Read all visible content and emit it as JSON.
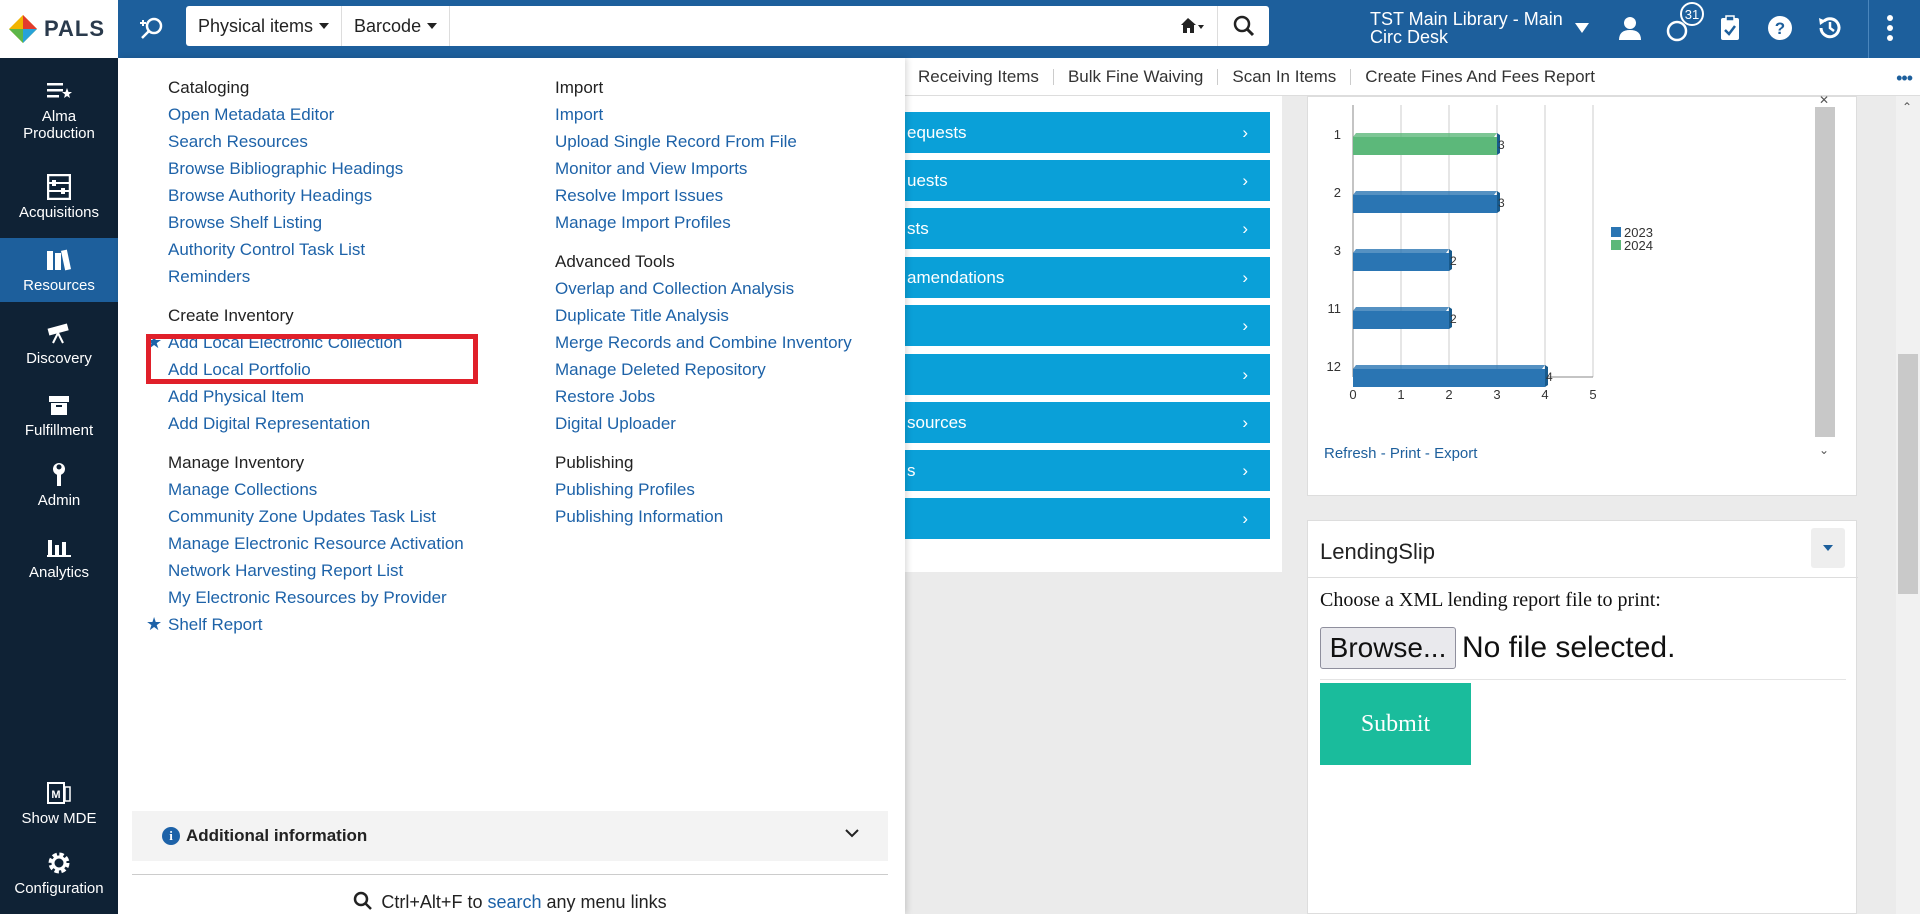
{
  "app": {
    "logo_text": "PALS"
  },
  "search": {
    "type_label": "Physical items",
    "field_label": "Barcode",
    "query": ""
  },
  "header": {
    "location_line1": "TST Main Library - Main",
    "location_line2": "Circ Desk",
    "notifications_count": "31"
  },
  "sidebar": {
    "items": [
      {
        "label_line1": "Alma",
        "label_line2": "Production",
        "icon": "alma-list-icon"
      },
      {
        "label_line1": "Acquisitions",
        "label_line2": "",
        "icon": "abacus-icon"
      },
      {
        "label_line1": "Resources",
        "label_line2": "",
        "icon": "books-icon"
      },
      {
        "label_line1": "Discovery",
        "label_line2": "",
        "icon": "telescope-icon"
      },
      {
        "label_line1": "Fulfillment",
        "label_line2": "",
        "icon": "box-icon"
      },
      {
        "label_line1": "Admin",
        "label_line2": "",
        "icon": "wrench-icon"
      },
      {
        "label_line1": "Analytics",
        "label_line2": "",
        "icon": "bar-chart-icon"
      },
      {
        "label_line1": "Show MDE",
        "label_line2": "",
        "icon": "mde-icon"
      },
      {
        "label_line1": "Configuration",
        "label_line2": "",
        "icon": "gear-icon"
      }
    ]
  },
  "tabs": [
    "Receiving Items",
    "Bulk Fine Waiving",
    "Scan In Items",
    "Create Fines And Fees Report"
  ],
  "blue_rows": [
    "equests",
    "uests",
    "sts",
    "amendations",
    "",
    "",
    "sources",
    "s",
    ""
  ],
  "menu": {
    "left": [
      {
        "heading": "Cataloging",
        "links": [
          "Open Metadata Editor",
          "Search Resources",
          "Browse Bibliographic Headings",
          "Browse Authority Headings",
          "Browse Shelf Listing",
          "Authority Control Task List",
          "Reminders"
        ]
      },
      {
        "heading": "Create Inventory",
        "links": [
          "Add Local Electronic Collection",
          "Add Local Portfolio",
          "Add Physical Item",
          "Add Digital Representation"
        ]
      },
      {
        "heading": "Manage Inventory",
        "links": [
          "Manage Collections",
          "Community Zone Updates Task List",
          "Manage Electronic Resource Activation",
          "Network Harvesting Report List",
          "My Electronic Resources by Provider",
          "Shelf Report"
        ]
      }
    ],
    "right": [
      {
        "heading": "Import",
        "links": [
          "Import",
          "Upload Single Record From File",
          "Monitor and View Imports",
          "Resolve Import Issues",
          "Manage Import Profiles"
        ]
      },
      {
        "heading": "Advanced Tools",
        "links": [
          "Overlap and Collection Analysis",
          "Duplicate Title Analysis",
          "Merge Records and Combine Inventory",
          "Manage Deleted Repository",
          "Restore Jobs",
          "Digital Uploader"
        ]
      },
      {
        "heading": "Publishing",
        "links": [
          "Publishing Profiles",
          "Publishing Information"
        ]
      }
    ],
    "additional_info": "Additional information",
    "footer": {
      "shortcut": "Ctrl+Alt+F to",
      "link": "search",
      "suffix": "any menu links"
    }
  },
  "chart_data": {
    "type": "bar",
    "orientation": "horizontal",
    "categories": [
      "1",
      "2",
      "3",
      "11",
      "12"
    ],
    "series": [
      {
        "name": "2023",
        "color": "#2a75b3",
        "values": [
          null,
          3,
          2,
          2,
          4
        ]
      },
      {
        "name": "2024",
        "color": "#5cb87a",
        "values": [
          3,
          null,
          null,
          null,
          null
        ]
      }
    ],
    "data_labels": [
      "3",
      "3",
      "2",
      "2",
      "4"
    ],
    "xticks": [
      "0",
      "1",
      "2",
      "3",
      "4",
      "5"
    ],
    "xlim": [
      0,
      5
    ],
    "legend": "right",
    "links": {
      "refresh": "Refresh",
      "print": "Print",
      "export": "Export"
    }
  },
  "lending": {
    "title": "LendingSlip",
    "label": "Choose a XML lending report file to print:",
    "browse": "Browse...",
    "nofile": "No file selected.",
    "submit": "Submit"
  }
}
